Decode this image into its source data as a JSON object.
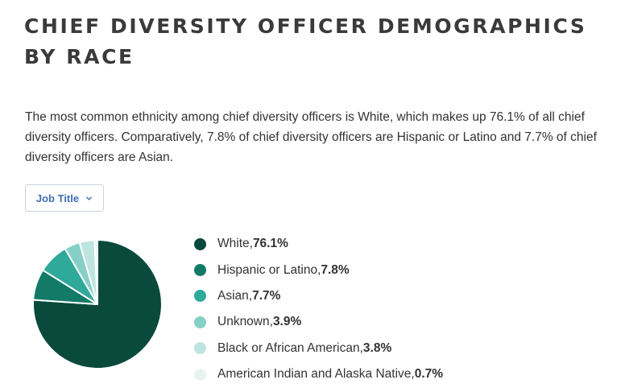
{
  "header": {
    "title": "CHIEF DIVERSITY OFFICER DEMOGRAPHICS BY RACE"
  },
  "description": "The most common ethnicity among chief diversity officers is White, which makes up 76.1% of all chief diversity officers. Comparatively, 7.8% of chief diversity officers are Hispanic or Latino and 7.7% of chief diversity officers are Asian.",
  "filter": {
    "label": "Job Title",
    "icon": "chevron-down-icon"
  },
  "chart_data": {
    "type": "pie",
    "title": "",
    "categories": [
      "White",
      "Hispanic or Latino",
      "Asian",
      "Unknown",
      "Black or African American",
      "American Indian and Alaska Native"
    ],
    "values": [
      76.1,
      7.8,
      7.7,
      3.9,
      3.8,
      0.7
    ],
    "value_labels": [
      "76.1%",
      "7.8%",
      "7.7%",
      "3.9%",
      "3.8%",
      "0.7%"
    ],
    "colors": [
      "#0a4a3c",
      "#127a67",
      "#2ea99a",
      "#86cfc6",
      "#bfe5e0",
      "#e7f4f2"
    ],
    "legend_position": "right",
    "start_angle": "12 o'clock, clockwise"
  }
}
